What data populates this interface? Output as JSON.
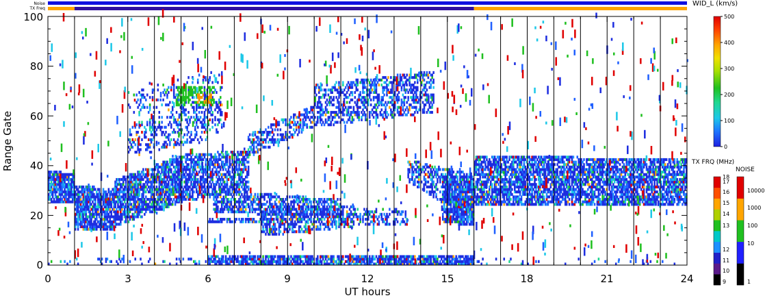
{
  "chart_data": {
    "type": "heatmap",
    "xlabel": "UT hours",
    "ylabel": "Range Gate",
    "xlim": [
      0,
      24
    ],
    "ylim": [
      0,
      100
    ],
    "xticks": [
      "0",
      "3",
      "6",
      "9",
      "12",
      "15",
      "18",
      "21",
      "24"
    ],
    "yticks": [
      "0",
      "20",
      "40",
      "60",
      "80",
      "100"
    ],
    "grid": "vertical lines every hour",
    "top_bars": {
      "noise_label": "Noise",
      "txfreq_label": "TX Freq",
      "noise_color": "#1010e0",
      "txfreq_segments": [
        {
          "from": 0,
          "to": 1,
          "color": "#ffa500"
        },
        {
          "from": 1,
          "to": 16,
          "color": "#3010a0"
        },
        {
          "from": 16,
          "to": 24,
          "color": "#ffa500"
        }
      ]
    },
    "width_colorbar": {
      "title": "WID_L (km/s)",
      "range": [
        0,
        500
      ],
      "ticks": [
        "0",
        "100",
        "200",
        "300",
        "400",
        "500"
      ]
    },
    "txfreq_colorbar": {
      "title": "TX FRQ (MHz)",
      "ticks": [
        "9",
        "10",
        "11",
        "12",
        "13",
        "14",
        "15",
        "16",
        "17",
        "18"
      ],
      "colors": [
        "#000000",
        "#5a1a8a",
        "#2020c8",
        "#1e90ff",
        "#00c8c8",
        "#20c020",
        "#b0d000",
        "#ffa500",
        "#ff5000",
        "#e00000"
      ]
    },
    "noise_colorbar": {
      "title": "NOISE",
      "ticks": [
        "1",
        "10",
        "100",
        "1000",
        "10000"
      ],
      "colors": [
        "#000000",
        "#2020ff",
        "#20c020",
        "#ffa500",
        "#e00000"
      ]
    },
    "regions": [
      {
        "t0": 0.0,
        "t1": 1.0,
        "g0a": 25,
        "g0b": 26,
        "g1a": 38,
        "g1b": 36,
        "density": 0.85
      },
      {
        "t0": 1.0,
        "t1": 2.5,
        "g0a": 14,
        "g0b": 15,
        "g1a": 32,
        "g1b": 30,
        "density": 0.85
      },
      {
        "t0": 2.5,
        "t1": 5.0,
        "g0a": 16,
        "g0b": 26,
        "g1a": 34,
        "g1b": 44,
        "density": 0.75
      },
      {
        "t0": 5.0,
        "t1": 7.5,
        "g0a": 26,
        "g0b": 30,
        "g1a": 44,
        "g1b": 46,
        "density": 0.65
      },
      {
        "t0": 3.0,
        "t1": 6.5,
        "g0a": 44,
        "g0b": 52,
        "g1a": 56,
        "g1b": 66,
        "density": 0.3
      },
      {
        "t0": 3.0,
        "t1": 6.5,
        "g0a": 60,
        "g0b": 64,
        "g1a": 70,
        "g1b": 78,
        "density": 0.2
      },
      {
        "t0": 6.2,
        "t1": 11.0,
        "g0a": 22,
        "g0b": 19,
        "g1a": 30,
        "g1b": 26,
        "density": 0.55
      },
      {
        "t0": 6.0,
        "t1": 8.5,
        "g0a": 17,
        "g0b": 17,
        "g1a": 19,
        "g1b": 19,
        "density": 0.6
      },
      {
        "t0": 8.0,
        "t1": 11.5,
        "g0a": 12,
        "g0b": 16,
        "g1a": 24,
        "g1b": 24,
        "density": 0.55
      },
      {
        "t0": 11.5,
        "t1": 13.5,
        "g0a": 16,
        "g0b": 16,
        "g1a": 23,
        "g1b": 22,
        "density": 0.4
      },
      {
        "t0": 7.5,
        "t1": 10.0,
        "g0a": 44,
        "g0b": 56,
        "g1a": 52,
        "g1b": 64,
        "density": 0.45
      },
      {
        "t0": 10.0,
        "t1": 14.5,
        "g0a": 56,
        "g0b": 62,
        "g1a": 72,
        "g1b": 78,
        "density": 0.45
      },
      {
        "t0": 13.5,
        "t1": 16.0,
        "g0a": 34,
        "g0b": 18,
        "g1a": 42,
        "g1b": 36,
        "density": 0.5
      },
      {
        "t0": 14.8,
        "t1": 16.0,
        "g0a": 18,
        "g0b": 16,
        "g1a": 36,
        "g1b": 36,
        "density": 0.8
      },
      {
        "t0": 16.0,
        "t1": 24.0,
        "g0a": 24,
        "g0b": 24,
        "g1a": 44,
        "g1b": 42,
        "density": 0.72
      },
      {
        "t0": 6.0,
        "t1": 16.0,
        "g0a": 0,
        "g0b": 0,
        "g1a": 4,
        "g1b": 4,
        "density": 0.8
      },
      {
        "t0": 0.0,
        "t1": 6.0,
        "g0a": 0,
        "g0b": 0,
        "g1a": 3,
        "g1b": 3,
        "density": 0.15
      },
      {
        "t0": 16.0,
        "t1": 24.0,
        "g0a": 0,
        "g0b": 0,
        "g1a": 3,
        "g1b": 3,
        "density": 0.1
      }
    ],
    "hotspots": [
      {
        "t0": 4.8,
        "t1": 6.2,
        "g0": 64,
        "g1": 72,
        "color": "#20c020"
      },
      {
        "t0": 5.6,
        "t1": 6.1,
        "g0": 65,
        "g1": 69,
        "color": "#ff9000"
      }
    ]
  }
}
